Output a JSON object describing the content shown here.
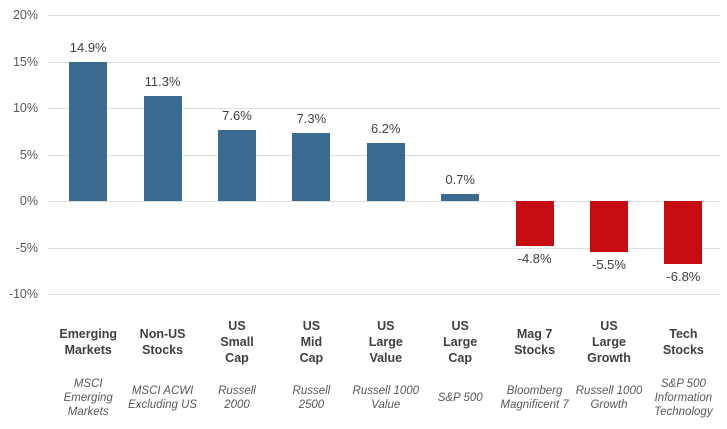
{
  "chart_data": {
    "type": "bar",
    "title": "",
    "legend": "none",
    "grid": true,
    "categories": [
      "Emerging Markets",
      "Non-US Stocks",
      "US Small Cap",
      "US Mid Cap",
      "US Large Value",
      "US Large Cap",
      "Mag 7 Stocks",
      "US Large Growth",
      "Tech Stocks"
    ],
    "category_lines": [
      [
        "Emerging",
        "Markets"
      ],
      [
        "Non-US",
        "Stocks"
      ],
      [
        "US",
        "Small",
        "Cap"
      ],
      [
        "US",
        "Mid",
        "Cap"
      ],
      [
        "US",
        "Large",
        "Value"
      ],
      [
        "US",
        "Large",
        "Cap"
      ],
      [
        "Mag 7",
        "Stocks"
      ],
      [
        "US",
        "Large",
        "Growth"
      ],
      [
        "Tech",
        "Stocks"
      ]
    ],
    "indexes": [
      "MSCI Emerging Markets",
      "MSCI ACWI Excluding US",
      "Russell 2000",
      "Russell 2500",
      "Russell 1000 Value",
      "S&P 500",
      "Bloomberg Magnificent 7",
      "Russell 1000 Growth",
      "S&P 500 Information Technology"
    ],
    "index_lines": [
      [
        "MSCI",
        "Emerging",
        "Markets"
      ],
      [
        "MSCI ACWI",
        "Excluding US"
      ],
      [
        "Russell",
        "2000"
      ],
      [
        "Russell",
        "2500"
      ],
      [
        "Russell 1000",
        "Value"
      ],
      [
        "S&P 500"
      ],
      [
        "Bloomberg",
        "Magnificent 7"
      ],
      [
        "Russell 1000",
        "Growth"
      ],
      [
        "S&P 500",
        "Information",
        "Technology"
      ]
    ],
    "values": [
      14.9,
      11.3,
      7.6,
      7.3,
      6.2,
      0.7,
      -4.8,
      -5.5,
      -6.8
    ],
    "value_labels": [
      "14.9%",
      "11.3%",
      "7.6%",
      "7.3%",
      "6.2%",
      "0.7%",
      "-4.8%",
      "-5.5%",
      "-6.8%"
    ],
    "y_axis": {
      "tick_labels": [
        "20%",
        "15%",
        "10%",
        "5%",
        "0%",
        "-5%",
        "-10%"
      ],
      "tick_values": [
        20,
        15,
        10,
        5,
        0,
        -5,
        -10
      ],
      "min": -10,
      "max": 20
    },
    "colors": {
      "positive_bar": "#3A6B8F",
      "negative_bar": "#C60C10",
      "gridline": "#DEDEDE",
      "tick_text": "#595959",
      "value_text": "#404040",
      "category_text": "#404040",
      "index_text": "#595959"
    }
  }
}
